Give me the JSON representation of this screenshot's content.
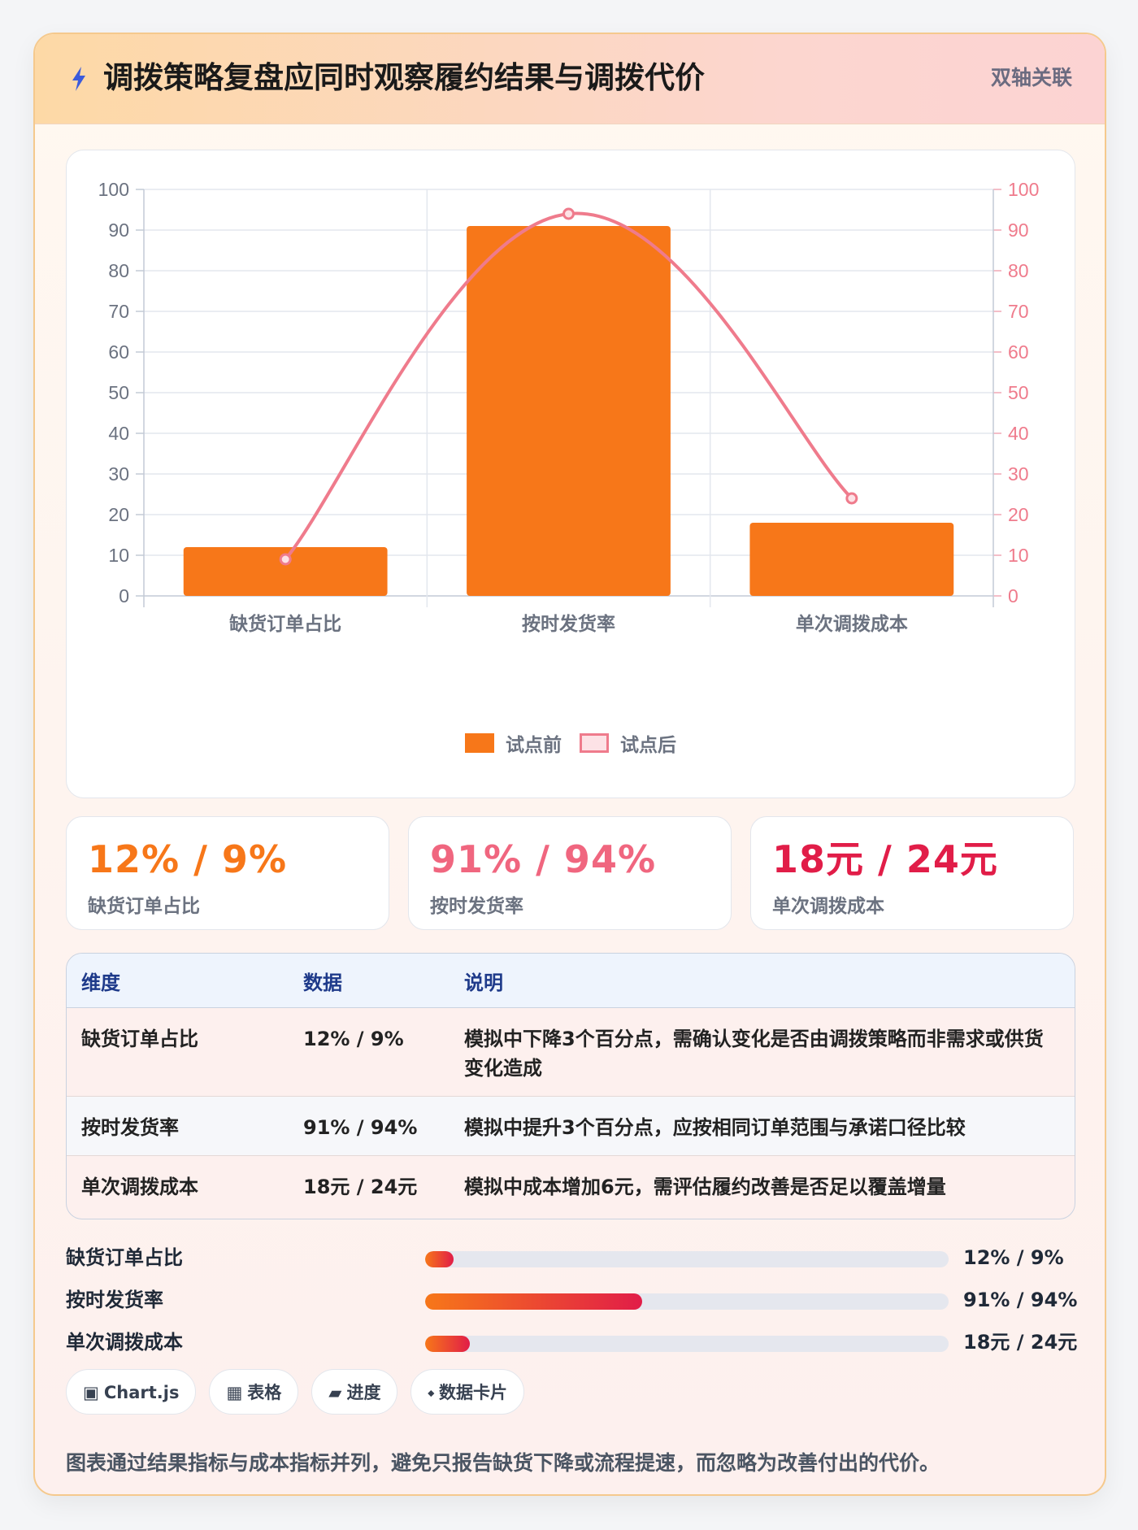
{
  "header": {
    "title": "调拨策略复盘应同时观察履约结果与调拨代价",
    "badge": "双轴关联",
    "icon": "lightning-icon"
  },
  "chart_data": {
    "type": "bar",
    "categories": [
      "缺货订单占比",
      "按时发货率",
      "单次调拨成本"
    ],
    "series": [
      {
        "name": "试点前",
        "type": "bar",
        "values": [
          12,
          91,
          18
        ],
        "color": "#f77719",
        "axis": "left"
      },
      {
        "name": "试点后",
        "type": "line",
        "values": [
          9,
          94,
          24
        ],
        "color": "#ef7b8c",
        "axis": "right"
      }
    ],
    "ylim": [
      0,
      100
    ],
    "y2lim": [
      0,
      100
    ],
    "yticks": [
      "0",
      "10",
      "20",
      "30",
      "40",
      "50",
      "60",
      "70",
      "80",
      "90",
      "100"
    ],
    "y2ticks": [
      "0",
      "10",
      "20",
      "30",
      "40",
      "50",
      "60",
      "70",
      "80",
      "90",
      "100"
    ],
    "grid": true,
    "legend_position": "bottom"
  },
  "kpis": [
    {
      "value": "12% / 9%",
      "label": "缺货订单占比",
      "color": "#f77719"
    },
    {
      "value": "91% / 94%",
      "label": "按时发货率",
      "color": "#f0667f"
    },
    {
      "value": "18元 / 24元",
      "label": "单次调拨成本",
      "color": "#e11d48"
    }
  ],
  "table": {
    "headers": [
      "维度",
      "数据",
      "说明"
    ],
    "rows": [
      [
        "缺货订单占比",
        "12% / 9%",
        "模拟中下降3个百分点，需确认变化是否由调拨策略而非需求或供货变化造成"
      ],
      [
        "按时发货率",
        "91% / 94%",
        "模拟中提升3个百分点，应按相同订单范围与承诺口径比较"
      ],
      [
        "单次调拨成本",
        "18元 / 24元",
        "模拟中成本增加6元，需评估履约改善是否足以覆盖增量"
      ]
    ]
  },
  "progress": [
    {
      "label": "缺货订单占比",
      "value": "12% / 9%",
      "fraction": 0.055
    },
    {
      "label": "按时发货率",
      "value": "91% / 94%",
      "fraction": 0.415
    },
    {
      "label": "单次调拨成本",
      "value": "18元 / 24元",
      "fraction": 0.085
    }
  ],
  "chips": [
    {
      "icon": "▣",
      "icon_name": "chart-icon",
      "label": "Chart.js"
    },
    {
      "icon": "▦",
      "icon_name": "table-icon",
      "label": "表格"
    },
    {
      "icon": "▰",
      "icon_name": "progress-icon",
      "label": "进度"
    },
    {
      "icon": "⬩",
      "icon_name": "card-icon",
      "label": "数据卡片"
    }
  ],
  "footnote": "图表通过结果指标与成本指标并列，避免只报告缺货下降或流程提速，而忽略为改善付出的代价。"
}
